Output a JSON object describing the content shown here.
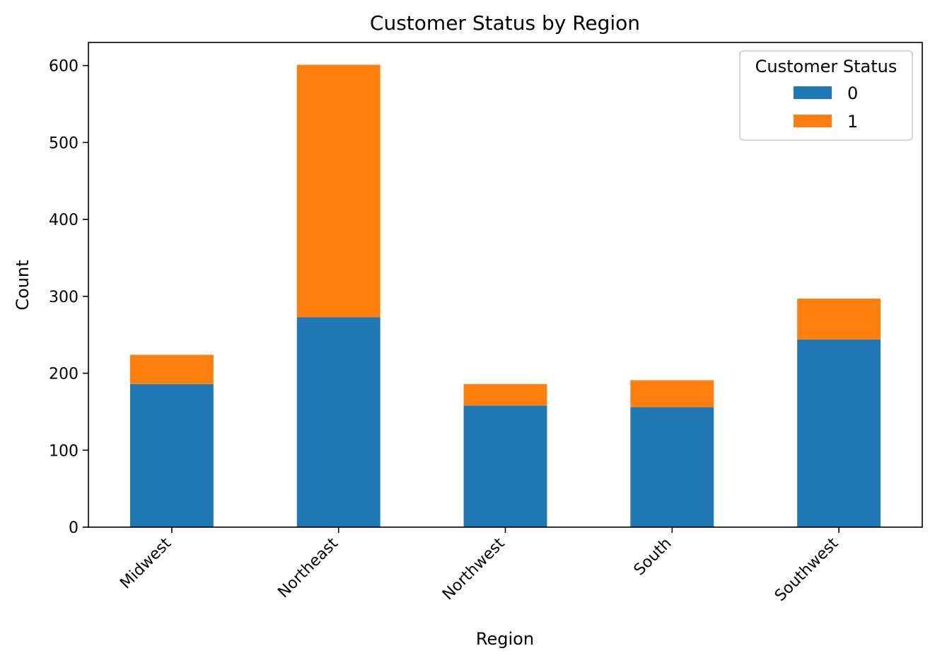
{
  "chart_data": {
    "type": "bar",
    "stacked": true,
    "title": "Customer Status by Region",
    "xlabel": "Region",
    "ylabel": "Count",
    "categories": [
      "Midwest",
      "Northeast",
      "Northwest",
      "South",
      "Southwest"
    ],
    "series": [
      {
        "name": "0",
        "values": [
          186,
          273,
          158,
          156,
          244
        ],
        "color": "#1f77b4"
      },
      {
        "name": "1",
        "values": [
          38,
          328,
          28,
          35,
          53
        ],
        "color": "#ff7f0e"
      }
    ],
    "ylim": [
      0,
      630
    ],
    "yticks": [
      0,
      100,
      200,
      300,
      400,
      500,
      600
    ],
    "grid": false,
    "legend": {
      "title": "Customer Status",
      "placement": "top-right"
    }
  }
}
